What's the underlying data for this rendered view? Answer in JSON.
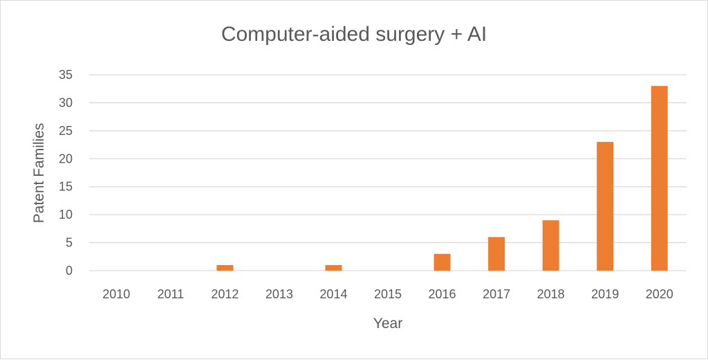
{
  "chart_data": {
    "type": "bar",
    "title": "Computer-aided surgery + AI",
    "xlabel": "Year",
    "ylabel": "Patent Families",
    "categories": [
      "2010",
      "2011",
      "2012",
      "2013",
      "2014",
      "2015",
      "2016",
      "2017",
      "2018",
      "2019",
      "2020"
    ],
    "values": [
      0,
      0,
      1,
      0,
      1,
      0,
      3,
      6,
      9,
      23,
      33
    ],
    "ylim": [
      0,
      35
    ],
    "yticks": [
      "0",
      "5",
      "10",
      "15",
      "20",
      "25",
      "30",
      "35"
    ],
    "grid": true,
    "legend": "none",
    "bar_color": "#ed7d31"
  }
}
